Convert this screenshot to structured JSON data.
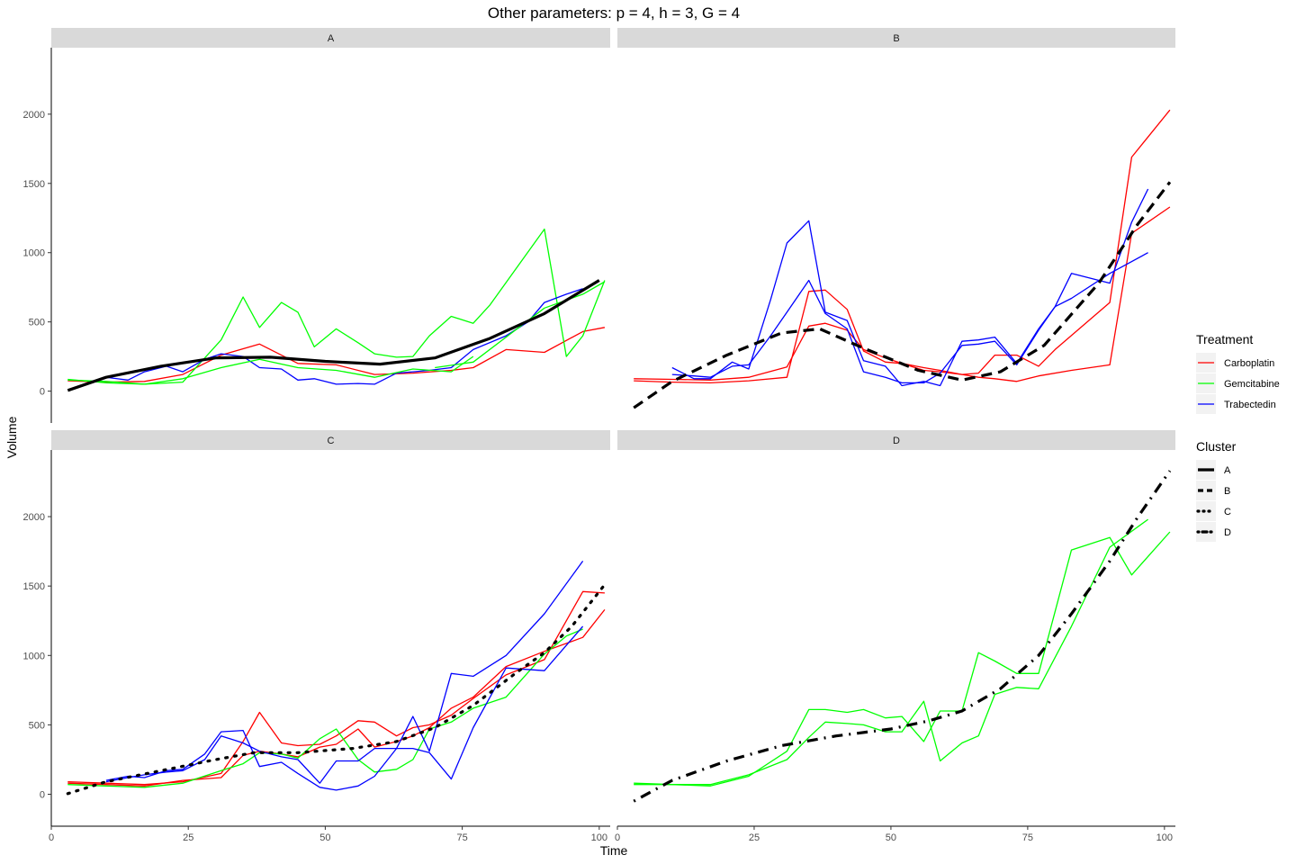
{
  "chart_data": {
    "type": "line",
    "title": "Other parameters: p = 4, h = 3, G = 4",
    "xlabel": "Time",
    "ylabel": "Volume",
    "xlim": [
      0,
      102
    ],
    "ylim": [
      -230,
      2480
    ],
    "x_ticks": [
      0,
      25,
      50,
      75,
      100
    ],
    "y_ticks": [
      0,
      500,
      1000,
      1500,
      2000
    ],
    "grid": false,
    "legend_position": "right",
    "treatment_legend": {
      "title": "Treatment",
      "entries": [
        {
          "label": "Carboplatin",
          "color": "#ff0000"
        },
        {
          "label": "Gemcitabine",
          "color": "#00ff00"
        },
        {
          "label": "Trabectedin",
          "color": "#0000ff"
        }
      ]
    },
    "cluster_legend": {
      "title": "Cluster",
      "entries": [
        {
          "label": "A",
          "linetype": "solid"
        },
        {
          "label": "B",
          "linetype": "dashed"
        },
        {
          "label": "C",
          "linetype": "dotted"
        },
        {
          "label": "D",
          "linetype": "dotdash"
        }
      ]
    },
    "panels": [
      {
        "label": "A",
        "cluster_curve": {
          "linetype": "solid",
          "x": [
            3,
            10,
            20,
            30,
            40,
            50,
            60,
            70,
            80,
            90,
            100
          ],
          "y": [
            5,
            100,
            180,
            240,
            245,
            215,
            195,
            240,
            380,
            560,
            800
          ]
        },
        "series": [
          {
            "treatment": "Carboplatin",
            "x": [
              3,
              10,
              17,
              24,
              31,
              38,
              45,
              52,
              59,
              66,
              73,
              77,
              83,
              90,
              97,
              101
            ],
            "y": [
              75,
              65,
              70,
              120,
              260,
              340,
              200,
              190,
              120,
              130,
              150,
              170,
              300,
              280,
              430,
              460
            ]
          },
          {
            "treatment": "Gemcitabine",
            "x": [
              3,
              10,
              17,
              24,
              31,
              35,
              38,
              42,
              45,
              48,
              52,
              56,
              59,
              63,
              66,
              69,
              73,
              77,
              80,
              90,
              94,
              97,
              101
            ],
            "y": [
              85,
              60,
              50,
              65,
              370,
              680,
              460,
              640,
              570,
              320,
              450,
              350,
              270,
              245,
              250,
              400,
              540,
              490,
              620,
              1170,
              250,
              400,
              800
            ]
          },
          {
            "treatment": "Trabectedin",
            "x": [
              10,
              14,
              17,
              21,
              24,
              28,
              31,
              35,
              38,
              42,
              45,
              48,
              52,
              56,
              59,
              63,
              66,
              69,
              73,
              77,
              83,
              87,
              90,
              94,
              97
            ],
            "y": [
              100,
              80,
              140,
              180,
              140,
              230,
              270,
              250,
              170,
              160,
              80,
              90,
              50,
              55,
              50,
              130,
              140,
              150,
              170,
              300,
              400,
              500,
              640,
              700,
              740
            ]
          },
          {
            "treatment": "Gemcitabine",
            "x": [
              3,
              10,
              17,
              24,
              31,
              38,
              45,
              52,
              59,
              66,
              73,
              77
            ],
            "y": [
              80,
              70,
              50,
              90,
              170,
              230,
              170,
              150,
              100,
              160,
              140,
              250
            ]
          },
          {
            "treatment": "Gemcitabine",
            "x": [
              70,
              77,
              83,
              90,
              97,
              101
            ],
            "y": [
              170,
              210,
              390,
              600,
              700,
              790
            ]
          }
        ]
      },
      {
        "label": "B",
        "cluster_curve": {
          "linetype": "dashed",
          "x": [
            3,
            10,
            20,
            30,
            37,
            45,
            55,
            63,
            70,
            78,
            88,
            95,
            101
          ],
          "y": [
            -120,
            70,
            260,
            420,
            450,
            310,
            150,
            80,
            140,
            330,
            780,
            1200,
            1510
          ]
        },
        "series": [
          {
            "treatment": "Carboplatin",
            "x": [
              3,
              10,
              17,
              24,
              31,
              35,
              38,
              42,
              45,
              49,
              52,
              56,
              59,
              63,
              66,
              69,
              73,
              77,
              80,
              90,
              94,
              101
            ],
            "y": [
              75,
              65,
              60,
              75,
              100,
              720,
              730,
              590,
              290,
              210,
              200,
              150,
              140,
              120,
              130,
              260,
              260,
              180,
              300,
              640,
              1690,
              2030
            ]
          },
          {
            "treatment": "Carboplatin",
            "x": [
              3,
              10,
              17,
              24,
              31,
              35,
              38,
              42,
              45,
              49,
              52,
              56,
              59,
              63,
              66,
              69,
              73,
              77,
              83,
              90,
              94,
              101
            ],
            "y": [
              90,
              85,
              80,
              100,
              175,
              470,
              490,
              440,
              300,
              240,
              200,
              170,
              150,
              120,
              100,
              90,
              70,
              110,
              150,
              190,
              1140,
              1330
            ]
          },
          {
            "treatment": "Trabectedin",
            "x": [
              10,
              14,
              17,
              21,
              24,
              28,
              31,
              35,
              38,
              42,
              45,
              49,
              52,
              56,
              59,
              63,
              66,
              69,
              73,
              77,
              80,
              83,
              90,
              97
            ],
            "y": [
              170,
              90,
              90,
              210,
              160,
              660,
              1070,
              1230,
              570,
              510,
              220,
              180,
              40,
              70,
              40,
              360,
              370,
              390,
              200,
              450,
              610,
              670,
              850,
              1000
            ]
          },
          {
            "treatment": "Trabectedin",
            "x": [
              10,
              14,
              17,
              21,
              24,
              28,
              31,
              35,
              38,
              42,
              45,
              49,
              52,
              56,
              59,
              63,
              66,
              69,
              73,
              77,
              80,
              83,
              90,
              94,
              97
            ],
            "y": [
              120,
              110,
              100,
              180,
              190,
              400,
              570,
              800,
              560,
              450,
              140,
              100,
              60,
              60,
              130,
              330,
              340,
              360,
              190,
              440,
              610,
              850,
              780,
              1220,
              1460
            ]
          }
        ]
      },
      {
        "label": "C",
        "cluster_curve": {
          "linetype": "dotted",
          "x": [
            3,
            10,
            20,
            30,
            37,
            45,
            55,
            63,
            70,
            77,
            85,
            90,
            95,
            101
          ],
          "y": [
            5,
            90,
            170,
            250,
            300,
            300,
            330,
            380,
            480,
            640,
            880,
            1020,
            1210,
            1510
          ]
        },
        "series": [
          {
            "treatment": "Carboplatin",
            "x": [
              3,
              10,
              17,
              24,
              31,
              35,
              38,
              42,
              45,
              49,
              52,
              56,
              59,
              63,
              66,
              69,
              73,
              77,
              83,
              90,
              97,
              101
            ],
            "y": [
              90,
              80,
              70,
              90,
              150,
              380,
              590,
              370,
              350,
              360,
              420,
              530,
              520,
              420,
              480,
              500,
              570,
              690,
              860,
              970,
              1460,
              1450
            ]
          },
          {
            "treatment": "Carboplatin",
            "x": [
              3,
              10,
              17,
              24,
              31,
              35,
              38,
              42,
              45,
              49,
              52,
              56,
              59,
              63,
              66,
              69,
              73,
              77,
              83,
              90,
              97,
              101
            ],
            "y": [
              80,
              70,
              60,
              100,
              120,
              280,
              310,
              290,
              270,
              340,
              360,
              470,
              340,
              380,
              420,
              480,
              620,
              700,
              920,
              1030,
              1130,
              1330
            ]
          },
          {
            "treatment": "Gemcitabine",
            "x": [
              3,
              10,
              17,
              24,
              31,
              35,
              38,
              42,
              45,
              49,
              52,
              56,
              59,
              63,
              66,
              69,
              73,
              77,
              83,
              90,
              94,
              97
            ],
            "y": [
              70,
              60,
              50,
              80,
              170,
              220,
              300,
              290,
              260,
              400,
              470,
              250,
              160,
              180,
              250,
              470,
              520,
              620,
              700,
              1010,
              1140,
              1190
            ]
          },
          {
            "treatment": "Trabectedin",
            "x": [
              10,
              14,
              17,
              21,
              24,
              28,
              31,
              35,
              38,
              42,
              45,
              49,
              52,
              56,
              59,
              63,
              66,
              69,
              73,
              77,
              83,
              90,
              97
            ],
            "y": [
              100,
              130,
              120,
              170,
              180,
              290,
              450,
              460,
              200,
              230,
              150,
              50,
              30,
              60,
              130,
              330,
              560,
              310,
              870,
              850,
              1000,
              1300,
              1680
            ]
          },
          {
            "treatment": "Trabectedin",
            "x": [
              10,
              14,
              17,
              21,
              24,
              28,
              31,
              35,
              38,
              42,
              45,
              49,
              52,
              56,
              59,
              63,
              66,
              69,
              73,
              77,
              83,
              90,
              97
            ],
            "y": [
              90,
              120,
              140,
              160,
              170,
              250,
              420,
              370,
              310,
              270,
              250,
              80,
              240,
              240,
              330,
              330,
              330,
              300,
              110,
              480,
              910,
              890,
              1210
            ]
          }
        ]
      },
      {
        "label": "D",
        "cluster_curve": {
          "linetype": "dotdash",
          "x": [
            3,
            10,
            20,
            30,
            40,
            50,
            57,
            63,
            70,
            77,
            83,
            90,
            95,
            101
          ],
          "y": [
            -50,
            100,
            240,
            350,
            420,
            470,
            530,
            600,
            760,
            1000,
            1300,
            1680,
            1990,
            2330
          ]
        },
        "series": [
          {
            "treatment": "Gemcitabine",
            "x": [
              3,
              10,
              17,
              24,
              31,
              35,
              38,
              42,
              45,
              49,
              52,
              56,
              59,
              63,
              66,
              69,
              73,
              77,
              83,
              90,
              94,
              101
            ],
            "y": [
              80,
              70,
              60,
              130,
              310,
              610,
              610,
              590,
              610,
              550,
              560,
              380,
              600,
              600,
              1020,
              960,
              870,
              870,
              1760,
              1850,
              1580,
              1890
            ]
          },
          {
            "treatment": "Gemcitabine",
            "x": [
              3,
              10,
              17,
              24,
              31,
              35,
              38,
              42,
              45,
              49,
              52,
              56,
              59,
              63,
              66,
              69,
              73,
              77,
              83,
              90,
              97
            ],
            "y": [
              70,
              70,
              70,
              140,
              250,
              410,
              520,
              510,
              500,
              450,
              450,
              670,
              240,
              370,
              420,
              720,
              770,
              760,
              1210,
              1780,
              1980
            ]
          }
        ]
      }
    ]
  }
}
